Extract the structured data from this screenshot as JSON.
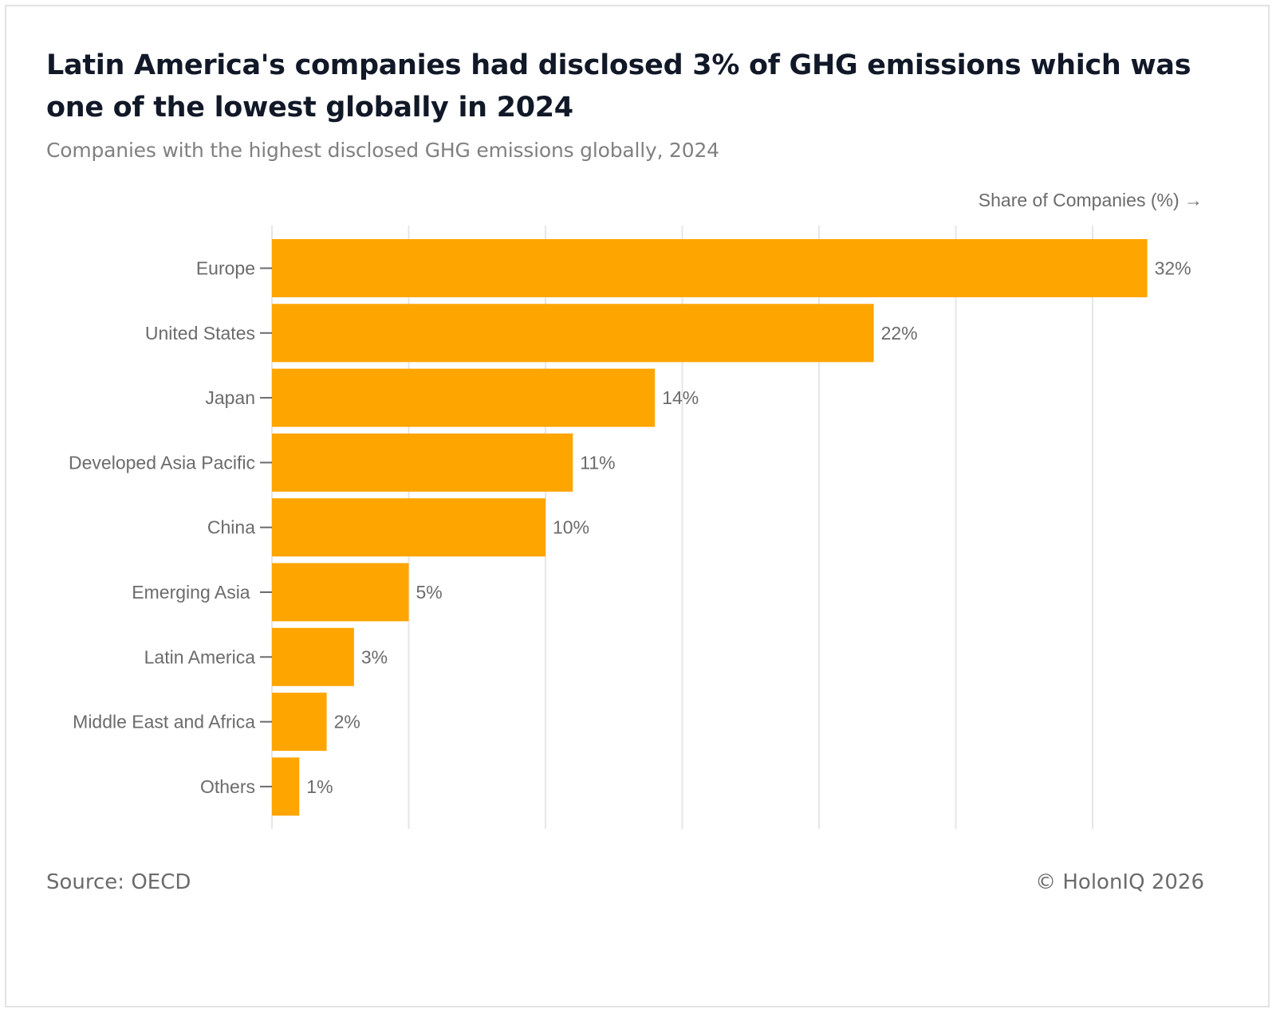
{
  "header": {
    "title": "Latin America's companies had disclosed 3% of GHG emissions which was one of the lowest globally in 2024",
    "subtitle": "Companies with the highest disclosed GHG emissions globally, 2024"
  },
  "footer": {
    "source": "Source: OECD",
    "copyright": "© HolonIQ 2026"
  },
  "colors": {
    "bar": "#FFA500",
    "grid": "#e6e6e6",
    "tick": "#6b6b6b"
  },
  "chart_data": {
    "type": "bar",
    "orientation": "horizontal",
    "title": "Latin America's companies had disclosed 3% of GHG emissions which was one of the lowest globally in 2024",
    "subtitle": "Companies with the highest disclosed GHG emissions globally, 2024",
    "xlabel": "Share of Companies (%) →",
    "ylabel": "",
    "categories": [
      "Europe",
      "United States",
      "Japan",
      "Developed Asia Pacific",
      "China",
      "Emerging Asia ",
      "Latin America",
      "Middle East and Africa",
      "Others"
    ],
    "values": [
      32,
      22,
      14,
      11,
      10,
      5,
      3,
      2,
      1
    ],
    "data_labels": [
      "32%",
      "22%",
      "14%",
      "11%",
      "10%",
      "5%",
      "3%",
      "2%",
      "1%"
    ],
    "xlim": [
      0,
      32
    ],
    "grid_step": 5,
    "grid": true,
    "x_tick_labels_shown": false,
    "legend": "none",
    "source": "Source: OECD",
    "credit": "© HolonIQ 2026"
  }
}
